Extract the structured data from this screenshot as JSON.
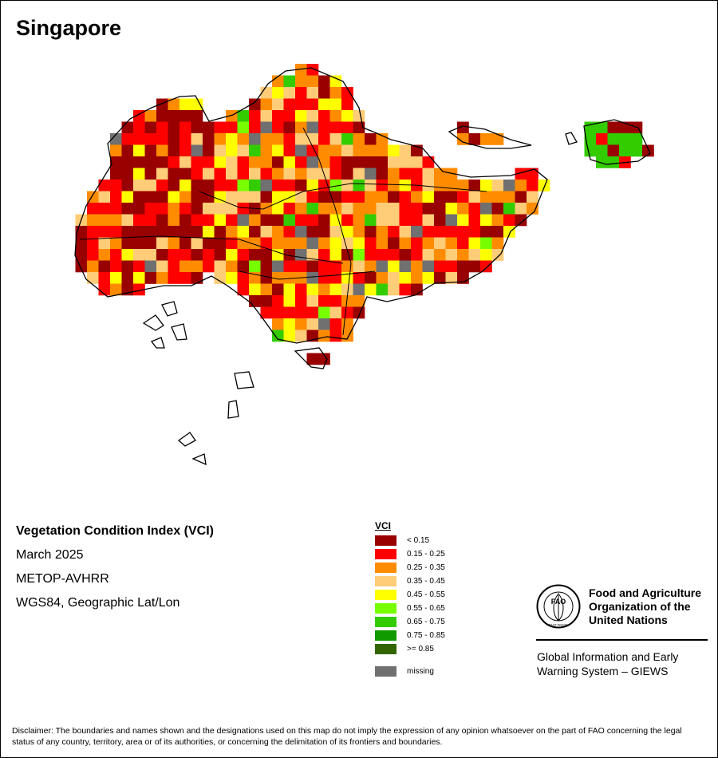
{
  "map": {
    "title": "Singapore"
  },
  "info": {
    "index_name": "Vegetation Condition Index (VCI)",
    "period": "March 2025",
    "sensor": "METOP-AVHRR",
    "projection": "WGS84, Geographic Lat/Lon"
  },
  "legend": {
    "title": "VCI",
    "classes": [
      {
        "label": "< 0.15",
        "color": "#990000"
      },
      {
        "label": "0.15 - 0.25",
        "color": "#ff0000"
      },
      {
        "label": "0.25 - 0.35",
        "color": "#ff8c00"
      },
      {
        "label": "0.35 - 0.45",
        "color": "#ffcc77"
      },
      {
        "label": "0.45 - 0.55",
        "color": "#ffff00"
      },
      {
        "label": "0.55 - 0.65",
        "color": "#77ff00"
      },
      {
        "label": "0.65 - 0.75",
        "color": "#33cc00"
      },
      {
        "label": "0.75 - 0.85",
        "color": "#119900"
      },
      {
        "label": ">= 0.85",
        "color": "#336600"
      }
    ],
    "missing": {
      "label": "missing",
      "color": "#707070"
    }
  },
  "logo": {
    "letters": "FAO",
    "motto": "FIAT PANIS",
    "org_line1": "Food and Agriculture",
    "org_line2": "Organization of the",
    "org_line3": "United Nations"
  },
  "giews": {
    "line1": "Global Information and Early",
    "line2": "Warning System – GIEWS"
  },
  "disclaimer": {
    "text": "Disclaimer: The boundaries and names shown and the designations used on this map do not imply the expression of any opinion whatsoever on the part of FAO concerning the legal status of any country, territory, area or of its authorities, or concerning the delimitation of its frontiers and boundaries."
  }
}
